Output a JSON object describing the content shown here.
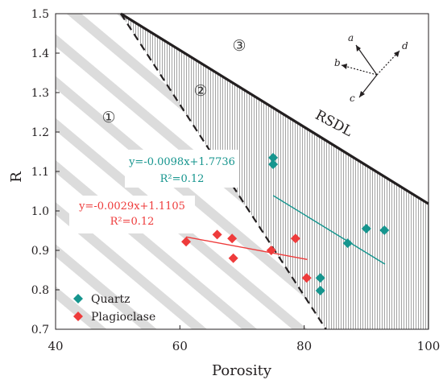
{
  "chart_data": {
    "type": "scatter",
    "title": "",
    "xlabel": "Porosity",
    "ylabel": "R",
    "xlim": [
      40,
      100
    ],
    "ylim": [
      0.7,
      1.5
    ],
    "xticks": [
      40,
      60,
      80,
      100
    ],
    "yticks": [
      0.7,
      0.8,
      0.9,
      1.0,
      1.1,
      1.2,
      1.3,
      1.4,
      1.5
    ],
    "xtick_labels": [
      "40",
      "60",
      "80",
      "100"
    ],
    "ytick_labels": [
      "0.7",
      "0.8",
      "0.9",
      "1.0",
      "1.1",
      "1.2",
      "1.3",
      "1.4",
      "1.5"
    ],
    "grid": false,
    "legend_position": "bottom-left",
    "series": [
      {
        "name": "Quartz",
        "marker": "diamond",
        "color": "#16958e",
        "points": [
          [
            75.0,
            1.135
          ],
          [
            75.0,
            1.118
          ],
          [
            87.0,
            0.918
          ],
          [
            90.0,
            0.955
          ],
          [
            92.9,
            0.951
          ],
          [
            82.6,
            0.83
          ],
          [
            82.6,
            0.798
          ]
        ],
        "trend_equation": "y=-0.0098x+1.7736",
        "r_squared_label": "R²=0.12",
        "trend_line": {
          "x": [
            75,
            93
          ],
          "y": [
            1.039,
            0.865
          ]
        }
      },
      {
        "name": "Plagioclase",
        "marker": "diamond",
        "color": "#ee3b3b",
        "points": [
          [
            61.0,
            0.922
          ],
          [
            66.0,
            0.94
          ],
          [
            68.4,
            0.93
          ],
          [
            68.6,
            0.88
          ],
          [
            74.7,
            0.9
          ],
          [
            78.6,
            0.93
          ],
          [
            80.4,
            0.83
          ]
        ],
        "trend_equation": "y=-0.0029x+1.1105",
        "r_squared_label": "R²=0.12",
        "trend_line": {
          "x": [
            61,
            80.5
          ],
          "y": [
            0.934,
            0.877
          ]
        }
      }
    ],
    "reference_lines": [
      {
        "label": "RSDL",
        "style": "solid",
        "color": "#231f20",
        "x": [
          50.5,
          100
        ],
        "y": [
          1.5,
          1.018
        ]
      },
      {
        "label": "",
        "style": "dashed",
        "color": "#231f20",
        "x": [
          50.5,
          83.5
        ],
        "y": [
          1.5,
          0.7
        ]
      }
    ],
    "region_labels": [
      "①",
      "②",
      "③"
    ],
    "vector_labels": [
      "a",
      "b",
      "c",
      "d"
    ]
  }
}
